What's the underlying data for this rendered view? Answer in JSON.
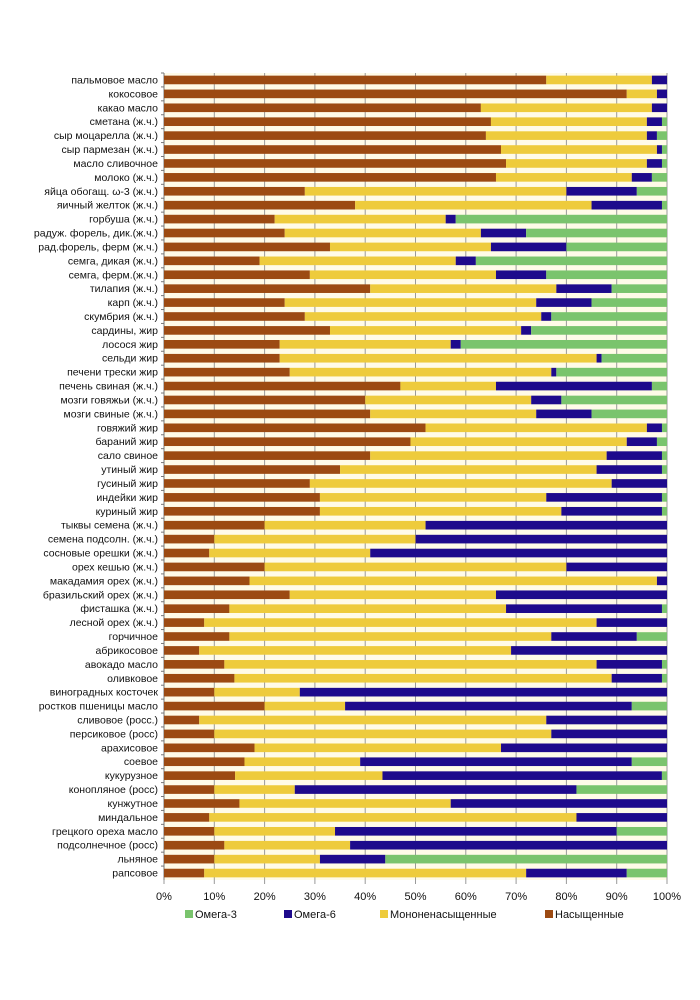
{
  "chart_data": {
    "type": "bar",
    "orientation": "horizontal",
    "stacked": "percent",
    "title": "",
    "xlabel": "",
    "ylabel": "",
    "xlim": [
      0,
      100
    ],
    "x_ticks": [
      "0%",
      "10%",
      "20%",
      "30%",
      "40%",
      "50%",
      "60%",
      "70%",
      "80%",
      "90%",
      "100%"
    ],
    "grid": true,
    "legend_position": "bottom",
    "categories": [
      "пальмовое масло",
      "кокосовое",
      "какао масло",
      "сметана (ж.ч.)",
      "сыр моцарелла (ж.ч.)",
      "сыр пармезан (ж.ч.)",
      "масло сливочное",
      "молоко (ж.ч.)",
      "яйца обогащ. ω-3 (ж.ч.)",
      "яичный желток (ж.ч.)",
      "горбуша (ж.ч.)",
      "радуж. форель, дик.(ж.ч.)",
      "рад.форель, ферм (ж.ч.)",
      "семга, дикая (ж.ч.)",
      "семга, ферм.(ж.ч.)",
      "тилапия (ж.ч.)",
      "карп (ж.ч.)",
      "скумбрия (ж.ч.)",
      "сардины, жир",
      "лосося жир",
      "сельди жир",
      "печени трески жир",
      "печень свиная (ж.ч.)",
      "мозги говяжьи (ж.ч.)",
      "мозги свиные (ж.ч.)",
      "говяжий жир",
      "бараний жир",
      "сало свиное",
      "утиный жир",
      "гусиный жир",
      "индейки жир",
      "куриный жир",
      "тыквы семена (ж.ч.)",
      "семена подсолн. (ж.ч.)",
      "сосновые орешки (ж.ч.)",
      "орех кешью (ж.ч.)",
      "макадамия орех (ж.ч.)",
      "бразильский орех (ж.ч.)",
      "фисташка (ж.ч.)",
      "лесной орех (ж.ч.)",
      "горчичное",
      "абрикосовое",
      "авокадо масло",
      "оливковое",
      "виноградных косточек",
      "ростков пшеницы масло",
      "сливовое (росс.)",
      "персиковое (росс)",
      "арахисовое",
      "соевое",
      "кукурузное",
      "конопляное (росс)",
      "кунжутное",
      "миндальное",
      "грецкого ореха масло",
      "подсолнечное (росс)",
      "льняное",
      "рапсовое"
    ],
    "series": [
      {
        "name": "Насыщенные",
        "color": "#9c4a12",
        "values": [
          76,
          92,
          63,
          65,
          64,
          67,
          68,
          66,
          28,
          38,
          22,
          24,
          33,
          19,
          29,
          41,
          24,
          28,
          33,
          23,
          23,
          25,
          47,
          40,
          41,
          52,
          49,
          41,
          35,
          29,
          31,
          31,
          20,
          10,
          9,
          20,
          17,
          25,
          13,
          8,
          13,
          7,
          12,
          14,
          10,
          20,
          7,
          10,
          18,
          16,
          14,
          10,
          15,
          9,
          10,
          12,
          10,
          8
        ]
      },
      {
        "name": "Мононенасыщенные",
        "color": "#eecb3c",
        "values": [
          21,
          6,
          34,
          31,
          32,
          31,
          28,
          27,
          52,
          47,
          34,
          39,
          32,
          39,
          37,
          37,
          50,
          47,
          38,
          34,
          63,
          52,
          19,
          33,
          33,
          44,
          43,
          47,
          51,
          60,
          45,
          48,
          32,
          40,
          32,
          60,
          81,
          41,
          55,
          78,
          64,
          62,
          74,
          75,
          17,
          16,
          69,
          67,
          49,
          23,
          29,
          16,
          42,
          73,
          24,
          25,
          21,
          64
        ]
      },
      {
        "name": "Омега-6",
        "color": "#1e0a8c",
        "values": [
          3,
          2,
          3,
          3,
          2,
          1,
          3,
          4,
          14,
          14,
          2,
          9,
          15,
          4,
          10,
          11,
          11,
          2,
          2,
          2,
          1,
          1,
          31,
          6,
          11,
          3,
          6,
          11,
          13,
          11,
          23,
          20,
          48,
          50,
          59,
          20,
          2,
          34,
          31,
          14,
          17,
          31,
          13,
          10,
          73,
          57,
          24,
          23,
          33,
          54,
          55,
          56,
          43,
          18,
          56,
          63,
          13,
          20
        ]
      },
      {
        "name": "Омега-3",
        "color": "#7ac46d",
        "values": [
          0,
          0,
          0,
          1,
          2,
          1,
          1,
          3,
          6,
          1,
          42,
          28,
          20,
          38,
          24,
          11,
          15,
          23,
          27,
          41,
          13,
          22,
          3,
          21,
          15,
          1,
          2,
          1,
          1,
          0,
          1,
          1,
          0,
          0,
          0,
          0,
          0,
          0,
          1,
          0,
          6,
          0,
          1,
          1,
          0,
          7,
          0,
          0,
          0,
          7,
          1,
          18,
          0,
          0,
          10,
          0,
          56,
          8
        ]
      }
    ],
    "legend": [
      "Омега-3",
      "Омега-6",
      "Мононенасыщенные",
      "Насыщенные"
    ]
  }
}
